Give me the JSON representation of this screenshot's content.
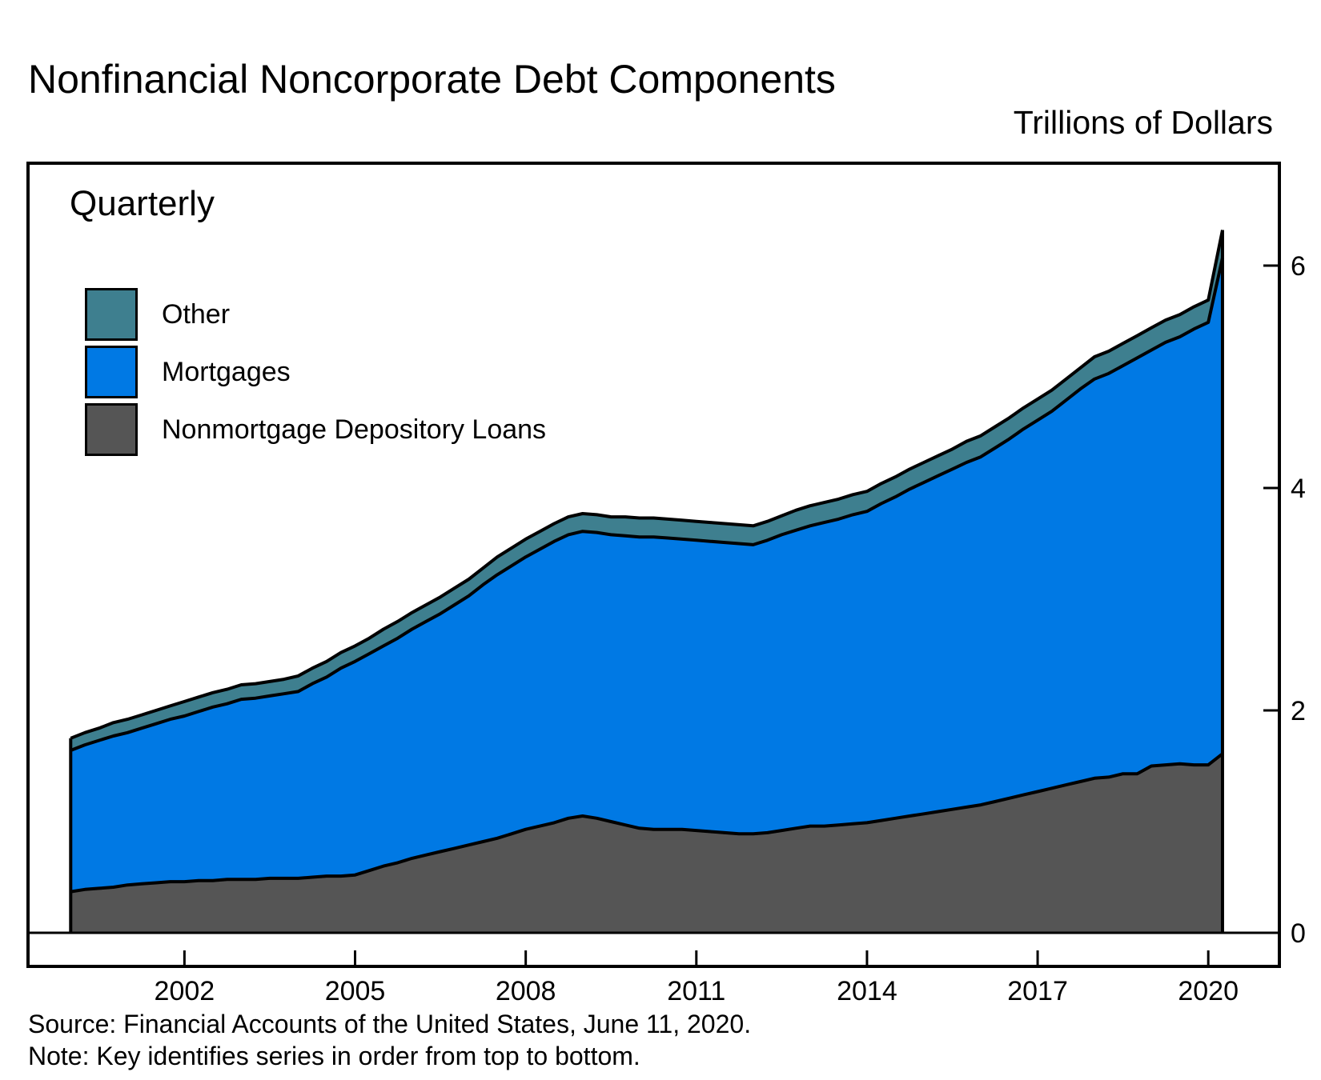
{
  "title": "Nonfinancial Noncorporate Debt Components",
  "units": "Trillions of Dollars",
  "frequency": "Quarterly",
  "source": "Source: Financial Accounts of the United States, June 11, 2020.",
  "note": "Note: Key identifies series in order from top to bottom.",
  "colors": {
    "other": "#3e7f8f",
    "mortgages": "#0079e4",
    "nonmortgage": "#555555",
    "outline": "#000000"
  },
  "legend": [
    {
      "label": "Other",
      "color": "#3e7f8f"
    },
    {
      "label": "Mortgages",
      "color": "#0079e4"
    },
    {
      "label": "Nonmortgage Depository Loans",
      "color": "#555555"
    }
  ],
  "chart_data": {
    "type": "area",
    "stacked": true,
    "title": "Nonfinancial Noncorporate Debt Components",
    "ylabel": "Trillions of Dollars",
    "ylim": [
      0,
      6.8
    ],
    "xlim": [
      1999.25,
      2021.25
    ],
    "y_ticks": [
      0,
      2,
      4,
      6
    ],
    "x_ticks": [
      2002,
      2005,
      2008,
      2011,
      2014,
      2017,
      2020
    ],
    "x_tick_labels": [
      "2002",
      "2005",
      "2008",
      "2011",
      "2014",
      "2017",
      "2020"
    ],
    "legend_position": "top-left",
    "x": [
      2000.0,
      2000.25,
      2000.5,
      2000.75,
      2001.0,
      2001.25,
      2001.5,
      2001.75,
      2002.0,
      2002.25,
      2002.5,
      2002.75,
      2003.0,
      2003.25,
      2003.5,
      2003.75,
      2004.0,
      2004.25,
      2004.5,
      2004.75,
      2005.0,
      2005.25,
      2005.5,
      2005.75,
      2006.0,
      2006.25,
      2006.5,
      2006.75,
      2007.0,
      2007.25,
      2007.5,
      2007.75,
      2008.0,
      2008.25,
      2008.5,
      2008.75,
      2009.0,
      2009.25,
      2009.5,
      2009.75,
      2010.0,
      2010.25,
      2010.5,
      2010.75,
      2011.0,
      2011.25,
      2011.5,
      2011.75,
      2012.0,
      2012.25,
      2012.5,
      2012.75,
      2013.0,
      2013.25,
      2013.5,
      2013.75,
      2014.0,
      2014.25,
      2014.5,
      2014.75,
      2015.0,
      2015.25,
      2015.5,
      2015.75,
      2016.0,
      2016.25,
      2016.5,
      2016.75,
      2017.0,
      2017.25,
      2017.5,
      2017.75,
      2018.0,
      2018.25,
      2018.5,
      2018.75,
      2019.0,
      2019.25,
      2019.5,
      2019.75,
      2020.0,
      2020.25
    ],
    "series": [
      {
        "name": "Nonmortgage Depository Loans",
        "color": "#555555",
        "values": [
          0.37,
          0.39,
          0.4,
          0.41,
          0.43,
          0.44,
          0.45,
          0.46,
          0.46,
          0.47,
          0.47,
          0.48,
          0.48,
          0.48,
          0.49,
          0.49,
          0.49,
          0.5,
          0.51,
          0.51,
          0.52,
          0.56,
          0.6,
          0.63,
          0.67,
          0.7,
          0.73,
          0.76,
          0.79,
          0.82,
          0.85,
          0.89,
          0.93,
          0.96,
          0.99,
          1.03,
          1.05,
          1.03,
          1.0,
          0.97,
          0.94,
          0.93,
          0.93,
          0.93,
          0.92,
          0.91,
          0.9,
          0.89,
          0.89,
          0.9,
          0.92,
          0.94,
          0.96,
          0.96,
          0.97,
          0.98,
          0.99,
          1.01,
          1.03,
          1.05,
          1.07,
          1.09,
          1.11,
          1.13,
          1.15,
          1.18,
          1.21,
          1.24,
          1.27,
          1.3,
          1.33,
          1.36,
          1.39,
          1.4,
          1.43,
          1.43,
          1.5,
          1.51,
          1.52,
          1.51,
          1.51,
          1.61
        ]
      },
      {
        "name": "Mortgages",
        "color": "#0079e4",
        "values": [
          1.27,
          1.3,
          1.33,
          1.36,
          1.37,
          1.4,
          1.43,
          1.46,
          1.49,
          1.52,
          1.56,
          1.58,
          1.62,
          1.63,
          1.64,
          1.66,
          1.68,
          1.74,
          1.79,
          1.87,
          1.92,
          1.95,
          1.98,
          2.02,
          2.06,
          2.1,
          2.14,
          2.19,
          2.24,
          2.31,
          2.37,
          2.41,
          2.45,
          2.49,
          2.53,
          2.55,
          2.56,
          2.57,
          2.58,
          2.6,
          2.62,
          2.63,
          2.62,
          2.61,
          2.61,
          2.61,
          2.61,
          2.61,
          2.6,
          2.63,
          2.66,
          2.68,
          2.7,
          2.73,
          2.75,
          2.78,
          2.8,
          2.85,
          2.89,
          2.94,
          2.98,
          3.02,
          3.06,
          3.1,
          3.13,
          3.18,
          3.23,
          3.29,
          3.34,
          3.39,
          3.46,
          3.53,
          3.59,
          3.63,
          3.67,
          3.74,
          3.74,
          3.8,
          3.84,
          3.92,
          3.98,
          4.46
        ]
      },
      {
        "name": "Other",
        "color": "#3e7f8f",
        "values": [
          0.11,
          0.11,
          0.11,
          0.12,
          0.12,
          0.12,
          0.12,
          0.12,
          0.13,
          0.13,
          0.13,
          0.13,
          0.13,
          0.13,
          0.13,
          0.13,
          0.14,
          0.14,
          0.14,
          0.14,
          0.14,
          0.14,
          0.15,
          0.15,
          0.15,
          0.15,
          0.15,
          0.15,
          0.15,
          0.15,
          0.16,
          0.16,
          0.16,
          0.16,
          0.16,
          0.16,
          0.16,
          0.16,
          0.16,
          0.17,
          0.17,
          0.17,
          0.17,
          0.17,
          0.17,
          0.17,
          0.17,
          0.17,
          0.17,
          0.17,
          0.17,
          0.18,
          0.18,
          0.18,
          0.18,
          0.18,
          0.18,
          0.18,
          0.18,
          0.18,
          0.18,
          0.18,
          0.18,
          0.19,
          0.19,
          0.19,
          0.19,
          0.19,
          0.19,
          0.19,
          0.19,
          0.19,
          0.2,
          0.2,
          0.2,
          0.2,
          0.2,
          0.2,
          0.2,
          0.2,
          0.2,
          0.25
        ]
      }
    ]
  }
}
